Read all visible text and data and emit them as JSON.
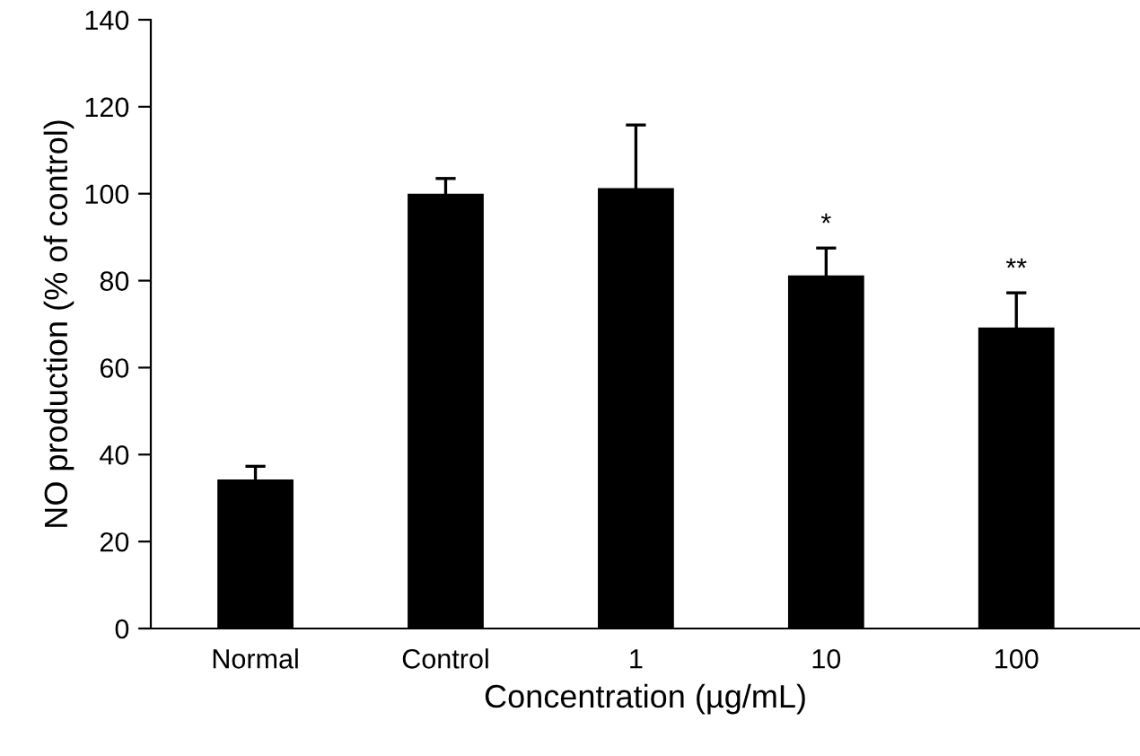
{
  "chart_data": {
    "type": "bar",
    "xlabel": "Concentration (µg/mL)",
    "ylabel": "NO production (% of control)",
    "categories": [
      "Normal",
      "Control",
      "1",
      "10",
      "100"
    ],
    "values": [
      34.3,
      100,
      101.3,
      81.2,
      69.2
    ],
    "errors": [
      3,
      3.5,
      14.5,
      6.3,
      8
    ],
    "color": "#000000",
    "ylim": [
      0,
      140
    ],
    "yticks": [
      0,
      20,
      40,
      60,
      80,
      100,
      120,
      140
    ],
    "grid": false,
    "legend": false,
    "annotations": [
      "*",
      "**"
    ]
  }
}
